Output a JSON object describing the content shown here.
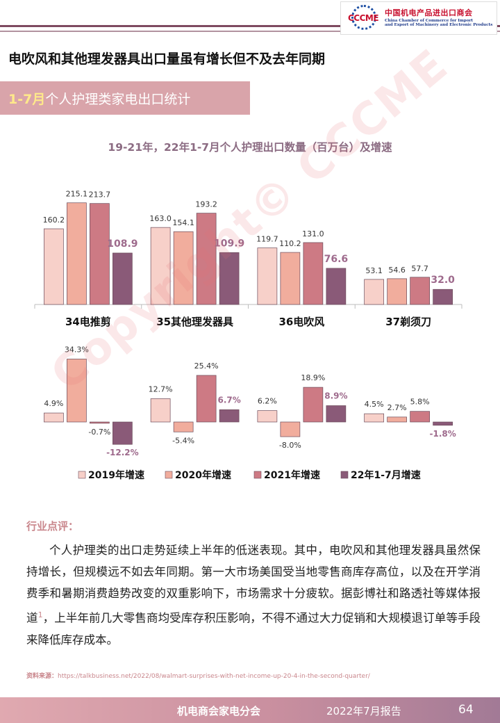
{
  "header": {
    "logo_mark": "CCCME",
    "logo_cn": "中国机电产品进出口商会",
    "logo_en_line1": "China Chamber of Commerce for Import",
    "logo_en_line2": "and Export of Machinery and Electronic Products"
  },
  "page_title": "电吹风和其他理发器具出口量虽有增长但不及去年同期",
  "section": {
    "highlight": "1-7月",
    "rest": "个人护理类家电出口统计"
  },
  "chart_title": "19-21年，22年1-7月个人护理出口数量（百万台）及增速",
  "chart_data": {
    "type": "bar",
    "categories": [
      "34电推剪",
      "35其他理发器具",
      "36电吹风",
      "37剃须刀"
    ],
    "series": [
      {
        "name": "2019年增速",
        "quantity": [
          160.2,
          163.0,
          119.7,
          53.1
        ],
        "growth": [
          4.9,
          12.7,
          6.2,
          4.5
        ],
        "color": "#f7d0c9"
      },
      {
        "name": "2020年增速",
        "quantity": [
          215.1,
          154.1,
          110.2,
          54.6
        ],
        "growth": [
          34.3,
          -5.4,
          -8.0,
          2.7
        ],
        "color": "#f1ad9d"
      },
      {
        "name": "2021年增速",
        "quantity": [
          213.7,
          193.2,
          131.0,
          57.7
        ],
        "growth": [
          -0.7,
          25.4,
          18.9,
          5.8
        ],
        "color": "#cd7a84"
      },
      {
        "name": "22年1-7月增速",
        "quantity": [
          108.9,
          109.9,
          76.6,
          32.0
        ],
        "growth": [
          -12.2,
          6.7,
          8.9,
          -1.8
        ],
        "color": "#8a5a78"
      }
    ],
    "highlight_label_color": "#9e6a8c"
  },
  "comment": {
    "title": "行业点评：",
    "body_part1": "个人护理类的出口走势延续上半年的低迷表现。其中，电吹风和其他理发器具虽然保持增长，但规模远不如去年同期。第一大市场美国受当地零售商库存高位，以及在开学消费季和暑期消费趋势改变的双重影响下，市场需求十分疲软。据彭博社和路透社等媒体报道",
    "footnote": "1",
    "body_part2": "，上半年前几大零售商均受库存积压影响，不得不通过大力促销和大规模退订单等手段来降低库存成本。"
  },
  "source": {
    "label": "资料来源：",
    "url": "https://talkbusiness.net/2022/08/walmart-surprises-with-net-income-up-20-4-in-the-second-quarter/"
  },
  "watermark": "Copyright© CCCME",
  "footer": {
    "org": "机电商会家电分会",
    "report": "2022年7月报告",
    "page": "64"
  }
}
